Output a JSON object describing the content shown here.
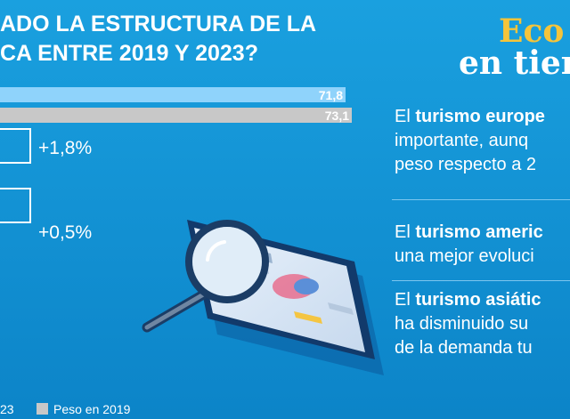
{
  "header": {
    "title_line1": "ADO LA ESTRUCTURA DE LA",
    "title_line2": "CA ENTRE 2019 Y 2023?"
  },
  "brand": {
    "line1": "Eco",
    "line2": "en tier"
  },
  "chart_data": {
    "type": "bar",
    "orientation": "horizontal",
    "series": [
      {
        "name": "…23",
        "color": "#8fd3fb"
      },
      {
        "name": "Peso en 2019",
        "color": "#c8c8c8"
      }
    ],
    "bars": [
      {
        "series": "…23",
        "value": 71.8,
        "label": "71,8"
      },
      {
        "series": "Peso en 2019",
        "value": 73.1,
        "label": "73,1"
      }
    ],
    "changes": [
      "+1,8%",
      "+0,5%"
    ],
    "legend": [
      "23",
      "Peso en 2019"
    ],
    "legend_position": "bottom"
  },
  "colors": {
    "background": "#1aa0df",
    "accent_gold": "#f5c43a",
    "bar_current": "#8fd3fb",
    "bar_2019": "#c8c8c8"
  },
  "illustration": {
    "icon": "tablet-with-magnifying-glass-icon"
  },
  "points": [
    {
      "prefix": "El ",
      "bold": "turismo europe",
      "line2": "importante, aunq",
      "line3": "peso respecto a 2"
    },
    {
      "prefix": "El ",
      "bold": "turismo americ",
      "line2": "una mejor evoluci"
    },
    {
      "prefix": "El ",
      "bold": "turismo asiátic",
      "line2": "ha disminuido su",
      "line3": "de la demanda tu"
    }
  ]
}
